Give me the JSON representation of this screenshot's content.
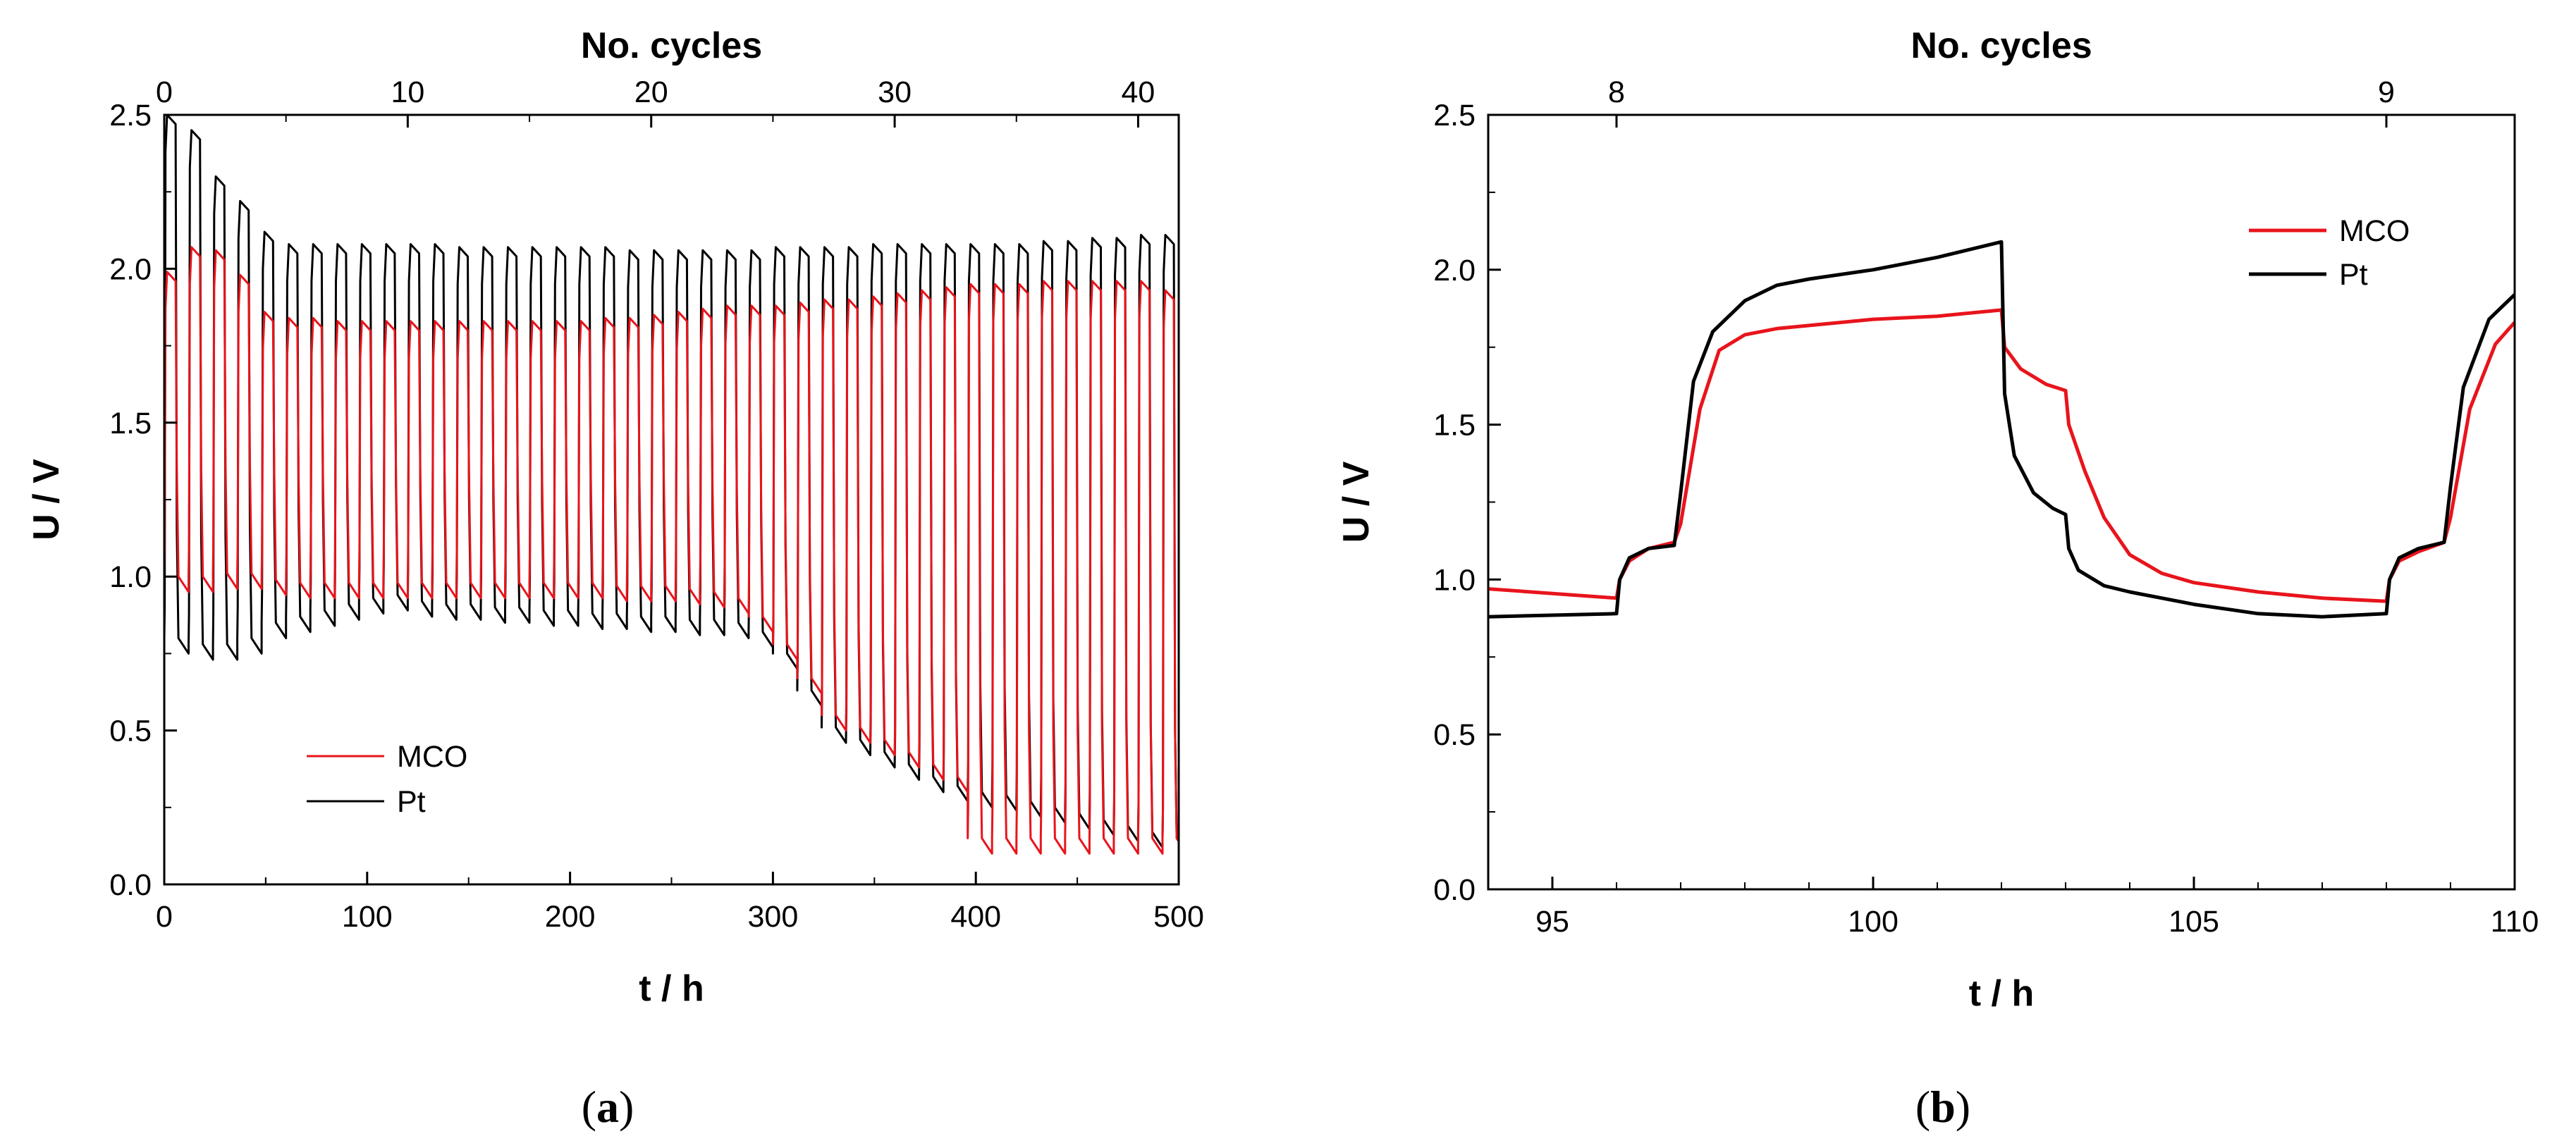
{
  "chart_data": [
    {
      "type": "line",
      "panel_label": [
        "(",
        "a",
        ")"
      ],
      "xlabel": "t / h",
      "ylabel": "U / V",
      "top_axis_label": "No. cycles",
      "xlim": [
        0,
        500
      ],
      "ylim": [
        0,
        2.5
      ],
      "x_ticks": [
        0,
        100,
        200,
        300,
        400,
        500
      ],
      "x_tick_labels": [
        "0",
        "100",
        "200",
        "300",
        "400",
        "500"
      ],
      "y_ticks": [
        0,
        0.5,
        1.0,
        1.5,
        2.0,
        2.5
      ],
      "y_tick_labels": [
        "0.0",
        "0.5",
        "1.0",
        "1.5",
        "2.0",
        "2.5"
      ],
      "top_ticks": [
        0,
        10,
        20,
        30,
        40
      ],
      "top_tick_labels": [
        "0",
        "10",
        "20",
        "30",
        "40"
      ],
      "cycle_period_h": 12,
      "legend": {
        "position": "bottom-left"
      },
      "series": [
        {
          "name": "MCO",
          "color": "#e8141c",
          "cycles": [
            [
              0,
              1.99,
              0.95
            ],
            [
              12,
              2.07,
              0.95
            ],
            [
              24,
              2.06,
              0.96
            ],
            [
              36,
              1.98,
              0.96
            ],
            [
              48,
              1.86,
              0.94
            ],
            [
              60,
              1.84,
              0.93
            ],
            [
              72,
              1.84,
              0.93
            ],
            [
              84,
              1.83,
              0.93
            ],
            [
              96,
              1.83,
              0.93
            ],
            [
              108,
              1.83,
              0.93
            ],
            [
              120,
              1.83,
              0.93
            ],
            [
              132,
              1.83,
              0.93
            ],
            [
              144,
              1.83,
              0.93
            ],
            [
              156,
              1.83,
              0.93
            ],
            [
              168,
              1.83,
              0.93
            ],
            [
              180,
              1.83,
              0.93
            ],
            [
              192,
              1.83,
              0.93
            ],
            [
              204,
              1.83,
              0.93
            ],
            [
              216,
              1.84,
              0.92
            ],
            [
              228,
              1.84,
              0.92
            ],
            [
              240,
              1.85,
              0.92
            ],
            [
              252,
              1.86,
              0.91
            ],
            [
              264,
              1.87,
              0.9
            ],
            [
              276,
              1.88,
              0.88
            ],
            [
              288,
              1.88,
              0.82
            ],
            [
              300,
              1.88,
              0.73
            ],
            [
              312,
              1.89,
              0.62
            ],
            [
              324,
              1.9,
              0.5
            ],
            [
              336,
              1.9,
              0.46
            ],
            [
              348,
              1.91,
              0.42
            ],
            [
              360,
              1.92,
              0.38
            ],
            [
              372,
              1.93,
              0.34
            ],
            [
              384,
              1.94,
              0.3
            ],
            [
              396,
              1.95,
              0.1
            ],
            [
              408,
              1.95,
              0.1
            ],
            [
              420,
              1.95,
              0.1
            ],
            [
              432,
              1.96,
              0.1
            ],
            [
              444,
              1.96,
              0.1
            ],
            [
              456,
              1.96,
              0.1
            ],
            [
              468,
              1.96,
              0.1
            ],
            [
              480,
              1.96,
              0.1
            ],
            [
              492,
              1.93,
              0.1
            ]
          ]
        },
        {
          "name": "Pt",
          "color": "#000000",
          "cycles": [
            [
              0,
              2.5,
              0.75
            ],
            [
              12,
              2.45,
              0.73
            ],
            [
              24,
              2.3,
              0.73
            ],
            [
              36,
              2.22,
              0.75
            ],
            [
              48,
              2.12,
              0.8
            ],
            [
              60,
              2.08,
              0.82
            ],
            [
              72,
              2.08,
              0.84
            ],
            [
              84,
              2.08,
              0.86
            ],
            [
              96,
              2.08,
              0.88
            ],
            [
              108,
              2.08,
              0.89
            ],
            [
              120,
              2.08,
              0.87
            ],
            [
              132,
              2.08,
              0.86
            ],
            [
              144,
              2.07,
              0.86
            ],
            [
              156,
              2.07,
              0.85
            ],
            [
              168,
              2.07,
              0.85
            ],
            [
              180,
              2.07,
              0.84
            ],
            [
              192,
              2.07,
              0.84
            ],
            [
              204,
              2.07,
              0.83
            ],
            [
              216,
              2.07,
              0.83
            ],
            [
              228,
              2.06,
              0.82
            ],
            [
              240,
              2.06,
              0.82
            ],
            [
              252,
              2.06,
              0.81
            ],
            [
              264,
              2.06,
              0.81
            ],
            [
              276,
              2.06,
              0.8
            ],
            [
              288,
              2.06,
              0.77
            ],
            [
              300,
              2.07,
              0.7
            ],
            [
              312,
              2.07,
              0.58
            ],
            [
              324,
              2.07,
              0.46
            ],
            [
              336,
              2.07,
              0.42
            ],
            [
              348,
              2.08,
              0.38
            ],
            [
              360,
              2.08,
              0.34
            ],
            [
              372,
              2.08,
              0.3
            ],
            [
              384,
              2.08,
              0.27
            ],
            [
              396,
              2.08,
              0.25
            ],
            [
              408,
              2.08,
              0.24
            ],
            [
              420,
              2.08,
              0.22
            ],
            [
              432,
              2.09,
              0.2
            ],
            [
              444,
              2.09,
              0.18
            ],
            [
              456,
              2.1,
              0.16
            ],
            [
              468,
              2.1,
              0.14
            ],
            [
              480,
              2.11,
              0.12
            ],
            [
              492,
              2.11,
              0.1
            ]
          ]
        }
      ]
    },
    {
      "type": "line",
      "panel_label": [
        "(",
        "b",
        ")"
      ],
      "xlabel": "t / h",
      "ylabel": "U / V",
      "top_axis_label": "No. cycles",
      "xlim": [
        94,
        110
      ],
      "ylim": [
        0,
        2.5
      ],
      "x_ticks": [
        95,
        100,
        105,
        110
      ],
      "x_tick_labels": [
        "95",
        "100",
        "105",
        "110"
      ],
      "y_ticks": [
        0,
        0.5,
        1.0,
        1.5,
        2.0,
        2.5
      ],
      "y_tick_labels": [
        "0.0",
        "0.5",
        "1.0",
        "1.5",
        "2.0",
        "2.5"
      ],
      "top_ticks": [
        96,
        108
      ],
      "top_tick_labels": [
        "8",
        "9"
      ],
      "legend": {
        "position": "top-right"
      },
      "series": [
        {
          "name": "MCO",
          "color": "#e8141c",
          "x": [
            94,
            96,
            96.05,
            96.2,
            96.5,
            96.9,
            97,
            97.3,
            97.6,
            98,
            98.5,
            99,
            100,
            101,
            102,
            102.05,
            102.3,
            102.7,
            103,
            103.05,
            103.3,
            103.6,
            104,
            104.5,
            105,
            106,
            107,
            108,
            108.05,
            108.2,
            108.5,
            108.9,
            109,
            109.3,
            109.7,
            110
          ],
          "y": [
            0.97,
            0.94,
            1.0,
            1.06,
            1.1,
            1.12,
            1.18,
            1.55,
            1.74,
            1.79,
            1.81,
            1.82,
            1.84,
            1.85,
            1.87,
            1.75,
            1.68,
            1.63,
            1.61,
            1.5,
            1.35,
            1.2,
            1.08,
            1.02,
            0.99,
            0.96,
            0.94,
            0.93,
            1.0,
            1.06,
            1.09,
            1.12,
            1.2,
            1.55,
            1.76,
            1.83
          ]
        },
        {
          "name": "Pt",
          "color": "#000000",
          "x": [
            94,
            96,
            96.05,
            96.2,
            96.5,
            96.9,
            97,
            97.2,
            97.5,
            98,
            98.5,
            99,
            100,
            101,
            101.8,
            102,
            102.05,
            102.2,
            102.5,
            102.8,
            103,
            103.05,
            103.2,
            103.6,
            104,
            105,
            106,
            107,
            108,
            108.05,
            108.2,
            108.5,
            108.9,
            109,
            109.2,
            109.6,
            110
          ],
          "y": [
            0.88,
            0.89,
            1.0,
            1.07,
            1.1,
            1.11,
            1.28,
            1.64,
            1.8,
            1.9,
            1.95,
            1.97,
            2.0,
            2.04,
            2.08,
            2.09,
            1.6,
            1.4,
            1.28,
            1.23,
            1.21,
            1.1,
            1.03,
            0.98,
            0.96,
            0.92,
            0.89,
            0.88,
            0.89,
            1.0,
            1.07,
            1.1,
            1.12,
            1.3,
            1.62,
            1.84,
            1.92
          ]
        }
      ]
    }
  ]
}
